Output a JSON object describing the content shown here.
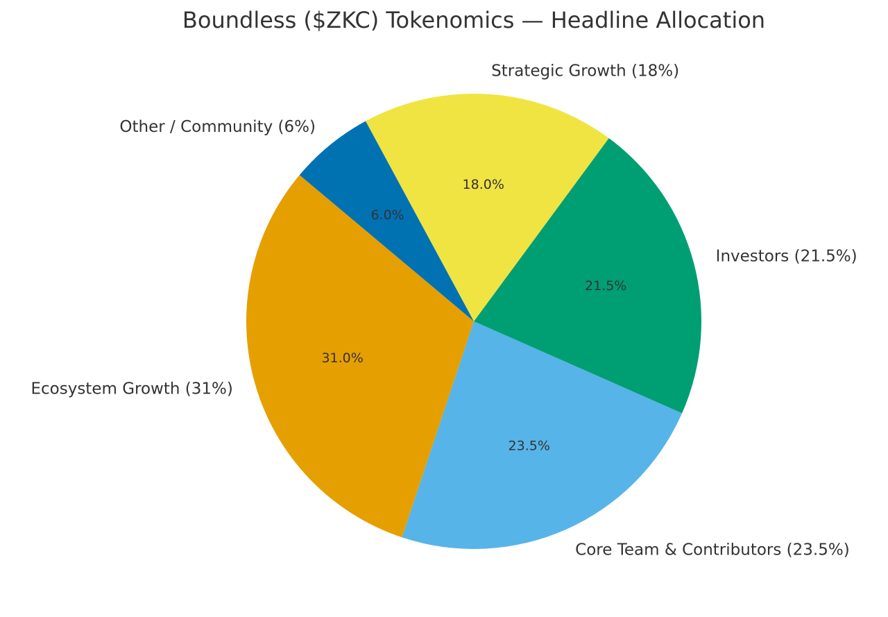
{
  "chart_data": {
    "type": "pie",
    "title": "Boundless ($ZKC) Tokenomics — Headline Allocation",
    "categories": [
      "Ecosystem Growth (31%)",
      "Core Team & Contributors (23.5%)",
      "Investors (21.5%)",
      "Strategic Growth (18%)",
      "Other / Community (6%)"
    ],
    "values": [
      31,
      23.5,
      21.5,
      18,
      6
    ],
    "value_labels": [
      "31.0%",
      "23.5%",
      "21.5%",
      "18.0%",
      "6.0%"
    ],
    "colors": [
      "#E69F00",
      "#56B4E9",
      "#009E73",
      "#F0E442",
      "#0072B2"
    ]
  }
}
